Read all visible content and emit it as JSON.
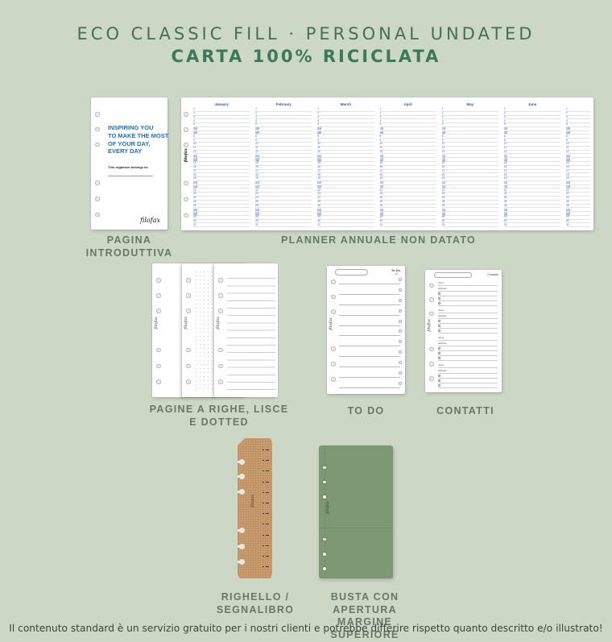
{
  "header": {
    "title_line1": "ECO CLASSIC FILL · PERSONAL UNDATED",
    "title_line2": "CARTA 100% RICICLATA"
  },
  "footer": {
    "disclaimer": "Il contenuto standard è un servizio gratuito per i nostri clienti e potrebbe differire rispetto quanto descritto e/o illustrato!"
  },
  "colors": {
    "background": "#cdd7c6",
    "title_green": "#44705a",
    "subtitle_green": "#3b7a59",
    "caption_gray_green": "#67786a",
    "filofax_blue": "#1d6fc2",
    "planner_header_blue": "#2d52c4",
    "envelope_green": "#7e9873",
    "ruler_tan": "#c89a6e"
  },
  "intro_page": {
    "caption_line1": "PAGINA",
    "caption_line2": "INTRODUTTIVA",
    "heading_lines": [
      "INSPIRING YOU",
      "TO MAKE THE MOST",
      "OF YOUR DAY,",
      "EVERY DAY"
    ],
    "belongs_label": "This organiser belongs to:",
    "brand": "filofax"
  },
  "annual_planner": {
    "caption": "PLANNER ANNUALE NON DATATO",
    "months": [
      "January",
      "February",
      "March",
      "April",
      "May",
      "June"
    ],
    "days_per_month": 31,
    "brand": "filofax"
  },
  "pages_pack": {
    "caption_line1": "PAGINE A RIGHE, LISCE",
    "caption_line2": "E DOTTED",
    "brand": "filofax"
  },
  "todo_page": {
    "caption": "TO DO",
    "header": "To Do",
    "checkmark": "✓",
    "row_count": 11,
    "brand": "filofax"
  },
  "contacts_page": {
    "caption": "CONTATTI",
    "header": "Contacts",
    "field_labels": [
      "name",
      "address"
    ],
    "block_count": 4,
    "brand": "filofax"
  },
  "ruler": {
    "caption_line1": "RIGHELLO /",
    "caption_line2": "SEGNALIBRO",
    "tick_count": 12,
    "brand": "filofax"
  },
  "envelope": {
    "caption_line1": "BUSTA CON APERTURA",
    "caption_line2": "MARGINE SUPERIORE",
    "brand": "filofax"
  }
}
